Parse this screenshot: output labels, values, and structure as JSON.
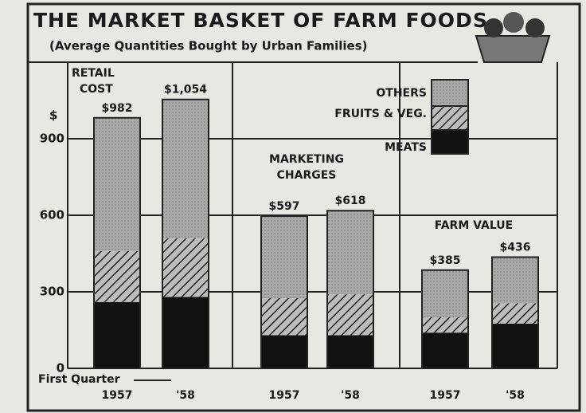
{
  "chart_data": {
    "type": "bar",
    "stacked": true,
    "title": "THE MARKET BASKET OF FARM FOODS",
    "subtitle": "(Average Quantities Bought by Urban Families)",
    "ylabel": "$",
    "note": "First Quarter",
    "ylim": [
      0,
      1200
    ],
    "yticks": [
      0,
      300,
      600,
      900
    ],
    "grid": true,
    "series": [
      {
        "name": "MEATS",
        "color": "#111111"
      },
      {
        "name": "FRUITS & VEG.",
        "color": "hatch"
      },
      {
        "name": "OTHERS",
        "color": "stipple"
      }
    ],
    "panels": [
      {
        "title": "RETAIL COST",
        "categories": [
          "1957",
          "'58"
        ],
        "series": [
          {
            "values": [
              260,
              280
            ]
          },
          {
            "values": [
              200,
              230
            ]
          },
          {
            "values": [
              522,
              544
            ]
          }
        ],
        "totals": [
          982,
          1054
        ],
        "total_labels": [
          "$982",
          "$1,054"
        ]
      },
      {
        "title": "MARKETING CHARGES",
        "categories": [
          "1957",
          "'58"
        ],
        "series": [
          {
            "values": [
              130,
              130
            ]
          },
          {
            "values": [
              145,
              160
            ]
          },
          {
            "values": [
              322,
              328
            ]
          }
        ],
        "totals": [
          597,
          618
        ],
        "total_labels": [
          "$597",
          "$618"
        ]
      },
      {
        "title": "FARM VALUE",
        "categories": [
          "1957",
          "'58"
        ],
        "series": [
          {
            "values": [
              140,
              175
            ]
          },
          {
            "values": [
              60,
              80
            ]
          },
          {
            "values": [
              185,
              181
            ]
          }
        ],
        "totals": [
          385,
          436
        ],
        "total_labels": [
          "$385",
          "$436"
        ]
      }
    ]
  }
}
